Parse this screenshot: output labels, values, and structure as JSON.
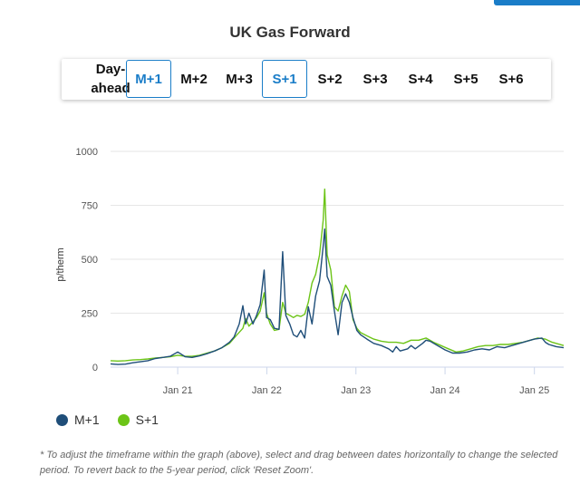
{
  "page": {
    "title": "UK Gas Forward"
  },
  "tabs": [
    {
      "label": "Day-\nahead",
      "selected": false
    },
    {
      "label": "M+1",
      "selected": true
    },
    {
      "label": "M+2",
      "selected": false
    },
    {
      "label": "M+3",
      "selected": false
    },
    {
      "label": "S+1",
      "selected": true
    },
    {
      "label": "S+2",
      "selected": false
    },
    {
      "label": "S+3",
      "selected": false
    },
    {
      "label": "S+4",
      "selected": false
    },
    {
      "label": "S+5",
      "selected": false
    },
    {
      "label": "S+6",
      "selected": false
    }
  ],
  "colors": {
    "accent": "#1a7dc8",
    "m1": "#1f4e79",
    "s1": "#6cc417",
    "grid": "#e6e6e6",
    "axis": "#ccd6eb"
  },
  "legend": [
    {
      "label": "M+1",
      "color": "#1f4e79"
    },
    {
      "label": "S+1",
      "color": "#6cc417"
    }
  ],
  "footnote": "* To adjust the timeframe within the graph (above), select and drag between dates horizontally to change the selected period. To revert back to the 5-year period, click 'Reset Zoom'.",
  "chart_data": {
    "type": "line",
    "ylabel": "p/therm",
    "ylim": [
      0,
      1000
    ],
    "yticks": [
      0,
      250,
      500,
      750,
      1000
    ],
    "xlim": [
      "2020-04-01",
      "2025-05-01"
    ],
    "xticks": [
      {
        "date": "2021-01-01",
        "label": "Jan 21"
      },
      {
        "date": "2022-01-01",
        "label": "Jan 22"
      },
      {
        "date": "2023-01-01",
        "label": "Jan 23"
      },
      {
        "date": "2024-01-01",
        "label": "Jan 24"
      },
      {
        "date": "2025-01-01",
        "label": "Jan 25"
      }
    ],
    "grid": true,
    "legend_position": "bottom-left",
    "series": [
      {
        "name": "M+1",
        "points": [
          [
            "2020-04-01",
            15
          ],
          [
            "2020-05-01",
            12
          ],
          [
            "2020-06-01",
            14
          ],
          [
            "2020-07-01",
            20
          ],
          [
            "2020-08-01",
            25
          ],
          [
            "2020-09-01",
            30
          ],
          [
            "2020-10-01",
            40
          ],
          [
            "2020-11-01",
            45
          ],
          [
            "2020-12-01",
            50
          ],
          [
            "2021-01-01",
            70
          ],
          [
            "2021-01-15",
            60
          ],
          [
            "2021-02-01",
            48
          ],
          [
            "2021-03-01",
            45
          ],
          [
            "2021-04-01",
            52
          ],
          [
            "2021-05-01",
            62
          ],
          [
            "2021-06-01",
            75
          ],
          [
            "2021-07-01",
            90
          ],
          [
            "2021-08-01",
            115
          ],
          [
            "2021-08-20",
            140
          ],
          [
            "2021-09-10",
            200
          ],
          [
            "2021-09-25",
            285
          ],
          [
            "2021-10-06",
            200
          ],
          [
            "2021-10-20",
            250
          ],
          [
            "2021-11-05",
            200
          ],
          [
            "2021-11-20",
            240
          ],
          [
            "2021-12-05",
            290
          ],
          [
            "2021-12-21",
            450
          ],
          [
            "2021-12-31",
            230
          ],
          [
            "2022-01-15",
            220
          ],
          [
            "2022-02-01",
            180
          ],
          [
            "2022-02-20",
            175
          ],
          [
            "2022-03-07",
            535
          ],
          [
            "2022-03-20",
            240
          ],
          [
            "2022-04-05",
            200
          ],
          [
            "2022-04-20",
            150
          ],
          [
            "2022-05-05",
            140
          ],
          [
            "2022-05-20",
            170
          ],
          [
            "2022-06-05",
            135
          ],
          [
            "2022-06-20",
            280
          ],
          [
            "2022-07-05",
            200
          ],
          [
            "2022-07-20",
            330
          ],
          [
            "2022-08-05",
            400
          ],
          [
            "2022-08-20",
            560
          ],
          [
            "2022-08-26",
            640
          ],
          [
            "2022-09-05",
            420
          ],
          [
            "2022-09-20",
            380
          ],
          [
            "2022-10-05",
            260
          ],
          [
            "2022-10-20",
            150
          ],
          [
            "2022-11-05",
            300
          ],
          [
            "2022-11-20",
            340
          ],
          [
            "2022-12-05",
            300
          ],
          [
            "2022-12-20",
            230
          ],
          [
            "2023-01-05",
            170
          ],
          [
            "2023-01-20",
            150
          ],
          [
            "2023-02-15",
            130
          ],
          [
            "2023-03-15",
            110
          ],
          [
            "2023-04-15",
            100
          ],
          [
            "2023-05-15",
            85
          ],
          [
            "2023-06-01",
            70
          ],
          [
            "2023-06-15",
            95
          ],
          [
            "2023-07-01",
            75
          ],
          [
            "2023-08-01",
            85
          ],
          [
            "2023-08-15",
            100
          ],
          [
            "2023-09-01",
            85
          ],
          [
            "2023-10-01",
            110
          ],
          [
            "2023-10-15",
            125
          ],
          [
            "2023-11-01",
            120
          ],
          [
            "2023-12-01",
            100
          ],
          [
            "2024-01-01",
            80
          ],
          [
            "2024-02-01",
            65
          ],
          [
            "2024-03-01",
            65
          ],
          [
            "2024-04-01",
            70
          ],
          [
            "2024-05-01",
            80
          ],
          [
            "2024-06-01",
            85
          ],
          [
            "2024-07-01",
            80
          ],
          [
            "2024-08-01",
            95
          ],
          [
            "2024-09-01",
            90
          ],
          [
            "2024-10-01",
            100
          ],
          [
            "2024-11-01",
            110
          ],
          [
            "2024-12-01",
            120
          ],
          [
            "2025-01-01",
            130
          ],
          [
            "2025-02-01",
            135
          ],
          [
            "2025-02-15",
            115
          ],
          [
            "2025-03-01",
            105
          ],
          [
            "2025-04-01",
            95
          ],
          [
            "2025-05-01",
            90
          ]
        ]
      },
      {
        "name": "S+1",
        "points": [
          [
            "2020-04-01",
            30
          ],
          [
            "2020-05-01",
            28
          ],
          [
            "2020-06-01",
            30
          ],
          [
            "2020-07-01",
            33
          ],
          [
            "2020-08-01",
            35
          ],
          [
            "2020-09-01",
            38
          ],
          [
            "2020-10-01",
            42
          ],
          [
            "2020-11-01",
            45
          ],
          [
            "2020-12-01",
            48
          ],
          [
            "2021-01-01",
            55
          ],
          [
            "2021-02-01",
            50
          ],
          [
            "2021-03-01",
            50
          ],
          [
            "2021-04-01",
            55
          ],
          [
            "2021-05-01",
            65
          ],
          [
            "2021-06-01",
            75
          ],
          [
            "2021-07-01",
            90
          ],
          [
            "2021-08-01",
            110
          ],
          [
            "2021-09-01",
            150
          ],
          [
            "2021-09-25",
            180
          ],
          [
            "2021-10-06",
            225
          ],
          [
            "2021-10-20",
            190
          ],
          [
            "2021-11-05",
            210
          ],
          [
            "2021-11-20",
            230
          ],
          [
            "2021-12-05",
            260
          ],
          [
            "2021-12-21",
            345
          ],
          [
            "2021-12-31",
            250
          ],
          [
            "2022-01-15",
            200
          ],
          [
            "2022-02-01",
            170
          ],
          [
            "2022-02-20",
            175
          ],
          [
            "2022-03-07",
            300
          ],
          [
            "2022-03-20",
            250
          ],
          [
            "2022-04-05",
            240
          ],
          [
            "2022-04-20",
            230
          ],
          [
            "2022-05-05",
            240
          ],
          [
            "2022-05-20",
            235
          ],
          [
            "2022-06-05",
            245
          ],
          [
            "2022-06-20",
            300
          ],
          [
            "2022-07-05",
            390
          ],
          [
            "2022-07-20",
            430
          ],
          [
            "2022-08-05",
            520
          ],
          [
            "2022-08-20",
            680
          ],
          [
            "2022-08-26",
            825
          ],
          [
            "2022-09-05",
            520
          ],
          [
            "2022-09-20",
            450
          ],
          [
            "2022-10-05",
            280
          ],
          [
            "2022-10-20",
            260
          ],
          [
            "2022-11-05",
            330
          ],
          [
            "2022-11-20",
            380
          ],
          [
            "2022-12-05",
            350
          ],
          [
            "2022-12-20",
            220
          ],
          [
            "2023-01-05",
            180
          ],
          [
            "2023-01-20",
            160
          ],
          [
            "2023-02-15",
            145
          ],
          [
            "2023-03-15",
            130
          ],
          [
            "2023-04-15",
            120
          ],
          [
            "2023-05-15",
            115
          ],
          [
            "2023-06-15",
            115
          ],
          [
            "2023-07-15",
            110
          ],
          [
            "2023-08-15",
            125
          ],
          [
            "2023-09-15",
            125
          ],
          [
            "2023-10-15",
            135
          ],
          [
            "2023-11-15",
            115
          ],
          [
            "2023-12-15",
            100
          ],
          [
            "2024-01-15",
            85
          ],
          [
            "2024-02-15",
            70
          ],
          [
            "2024-03-15",
            75
          ],
          [
            "2024-04-15",
            85
          ],
          [
            "2024-05-15",
            95
          ],
          [
            "2024-06-15",
            100
          ],
          [
            "2024-07-15",
            100
          ],
          [
            "2024-08-15",
            105
          ],
          [
            "2024-09-15",
            105
          ],
          [
            "2024-10-15",
            110
          ],
          [
            "2024-11-15",
            115
          ],
          [
            "2024-12-15",
            125
          ],
          [
            "2025-01-15",
            135
          ],
          [
            "2025-02-15",
            130
          ],
          [
            "2025-03-15",
            115
          ],
          [
            "2025-05-01",
            100
          ]
        ]
      }
    ]
  }
}
